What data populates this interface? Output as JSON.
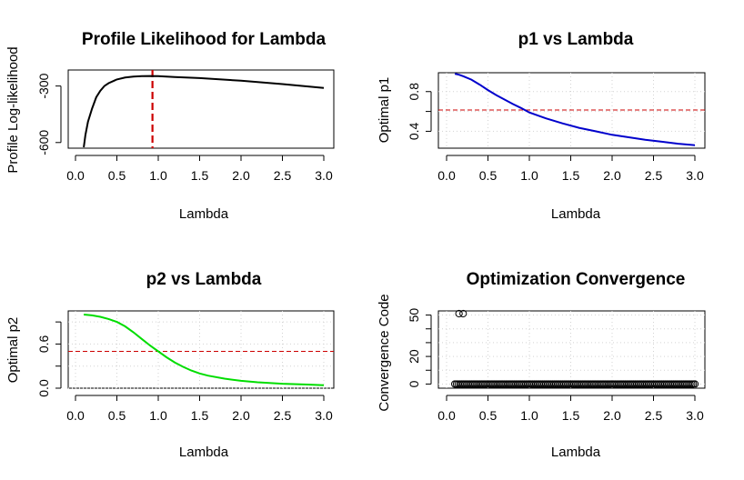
{
  "chart_data": [
    {
      "id": "profile",
      "type": "line",
      "title": "Profile Likelihood for Lambda",
      "xlabel": "Lambda",
      "ylabel": "Profile Log-likelihood",
      "xlim": [
        0,
        3.0
      ],
      "ylim": [
        -630,
        -215
      ],
      "xticks": [
        "0.0",
        "0.5",
        "1.0",
        "1.5",
        "2.0",
        "2.5",
        "3.0"
      ],
      "yticks": [
        -600,
        -300
      ],
      "ytick_labels": [
        "-600",
        "-300"
      ],
      "grid": false,
      "line_color": "#000000",
      "series": [
        {
          "x": [
            0.1,
            0.12,
            0.15,
            0.2,
            0.25,
            0.3,
            0.35,
            0.4,
            0.5,
            0.6,
            0.7,
            0.8,
            0.9,
            1.0,
            1.2,
            1.5,
            2.0,
            2.5,
            3.0
          ],
          "values": [
            -625,
            -560,
            -490,
            -420,
            -360,
            -325,
            -300,
            -285,
            -265,
            -255,
            -250,
            -248,
            -247,
            -248,
            -252,
            -258,
            -272,
            -290,
            -310
          ]
        }
      ],
      "vline": {
        "x": 0.93,
        "color": "#cc0000",
        "style": "dashed"
      }
    },
    {
      "id": "p1",
      "type": "line",
      "title": "p1 vs Lambda",
      "xlabel": "Lambda",
      "ylabel": "Optimal p1",
      "xlim": [
        0,
        3.0
      ],
      "ylim": [
        0.23,
        0.99
      ],
      "xticks": [
        "0.0",
        "0.5",
        "1.0",
        "1.5",
        "2.0",
        "2.5",
        "3.0"
      ],
      "yticks": [
        0.4,
        0.6,
        0.8
      ],
      "ytick_labels": [
        "0.4",
        "",
        "0.8"
      ],
      "grid": true,
      "line_color": "#0000cc",
      "series": [
        {
          "x": [
            0.1,
            0.15,
            0.2,
            0.3,
            0.4,
            0.5,
            0.6,
            0.7,
            0.8,
            0.9,
            1.0,
            1.2,
            1.4,
            1.6,
            1.8,
            2.0,
            2.2,
            2.4,
            2.6,
            2.8,
            3.0
          ],
          "values": [
            0.98,
            0.97,
            0.955,
            0.92,
            0.87,
            0.815,
            0.765,
            0.72,
            0.675,
            0.635,
            0.59,
            0.53,
            0.48,
            0.435,
            0.4,
            0.365,
            0.34,
            0.315,
            0.295,
            0.275,
            0.26
          ]
        }
      ],
      "hline": {
        "y": 0.615,
        "color": "#cc0000",
        "style": "dashed"
      }
    },
    {
      "id": "p2",
      "type": "line",
      "title": "p2 vs Lambda",
      "xlabel": "Lambda",
      "ylabel": "Optimal p2",
      "xlim": [
        0,
        3.0
      ],
      "ylim": [
        0.0,
        1.05
      ],
      "xticks": [
        "0.0",
        "0.5",
        "1.0",
        "1.5",
        "2.0",
        "2.5",
        "3.0"
      ],
      "yticks": [
        0.0,
        0.3,
        0.6,
        0.9
      ],
      "ytick_labels": [
        "0.0",
        "",
        "0.6",
        ""
      ],
      "grid": true,
      "line_color": "#00dd00",
      "series": [
        {
          "x": [
            0.1,
            0.2,
            0.3,
            0.4,
            0.5,
            0.6,
            0.7,
            0.8,
            0.9,
            1.0,
            1.1,
            1.2,
            1.3,
            1.4,
            1.5,
            1.6,
            1.8,
            2.0,
            2.2,
            2.5,
            2.8,
            3.0
          ],
          "values": [
            1.0,
            0.99,
            0.97,
            0.94,
            0.9,
            0.84,
            0.76,
            0.67,
            0.58,
            0.5,
            0.42,
            0.35,
            0.29,
            0.24,
            0.2,
            0.17,
            0.13,
            0.1,
            0.08,
            0.06,
            0.05,
            0.04
          ]
        }
      ],
      "hline": {
        "y": 0.5,
        "color": "#cc0000",
        "style": "dashed"
      }
    },
    {
      "id": "conv",
      "type": "scatter",
      "title": "Optimization Convergence",
      "xlabel": "Lambda",
      "ylabel": "Convergence Code",
      "xlim": [
        0,
        3.0
      ],
      "ylim": [
        -3,
        53
      ],
      "xticks": [
        "0.0",
        "0.5",
        "1.0",
        "1.5",
        "2.0",
        "2.5",
        "3.0"
      ],
      "yticks": [
        0,
        10,
        20,
        30,
        40,
        50
      ],
      "ytick_labels": [
        "0",
        "",
        "20",
        "",
        "",
        "50"
      ],
      "grid": true,
      "marker": "open-circle",
      "series": [
        {
          "points_at_51": [
            0.15,
            0.2
          ],
          "zero_start": 0.1,
          "zero_end": 3.0,
          "zero_step": 0.02
        }
      ]
    }
  ]
}
